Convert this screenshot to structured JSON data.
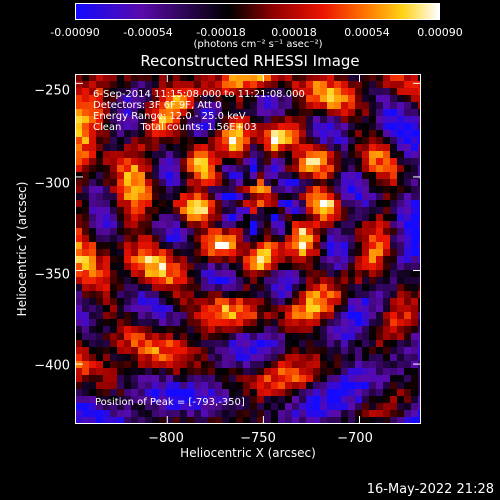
{
  "colorbar": {
    "ticks": [
      "-0.00090",
      "-0.00054",
      "-0.00018",
      "0.00018",
      "0.00054",
      "0.00090"
    ],
    "units": "(photons cm⁻² s⁻¹ asec⁻²)"
  },
  "chart_data": {
    "type": "heatmap",
    "title": "Reconstructed RHESSI Image",
    "xlabel": "Heliocentric X (arcsec)",
    "ylabel": "Heliocentric Y (arcsec)",
    "xlim": [
      -848,
      -668
    ],
    "ylim": [
      -432,
      -245
    ],
    "x_ticks": [
      -800,
      -750,
      -700
    ],
    "y_ticks": [
      -250,
      -300,
      -350,
      -400
    ],
    "value_range": [
      -0.0009,
      0.0009
    ],
    "colormap": "red-temperature (blue negative to white positive)",
    "peak_position": [
      -793,
      -350
    ]
  },
  "annotations": {
    "time_range": "6-Sep-2014 11:15:08.000 to 11:21:08.000",
    "detectors": "Detectors: 3F 6F 9F, Att 0",
    "energy_range": "Energy Range: 12.0 - 25.0 keV",
    "method": "Clean      Total counts: 1.56E+03",
    "peak": "Position of Peak = [-793,-350]"
  },
  "footer": {
    "date": "16-May-2022 21:28"
  }
}
